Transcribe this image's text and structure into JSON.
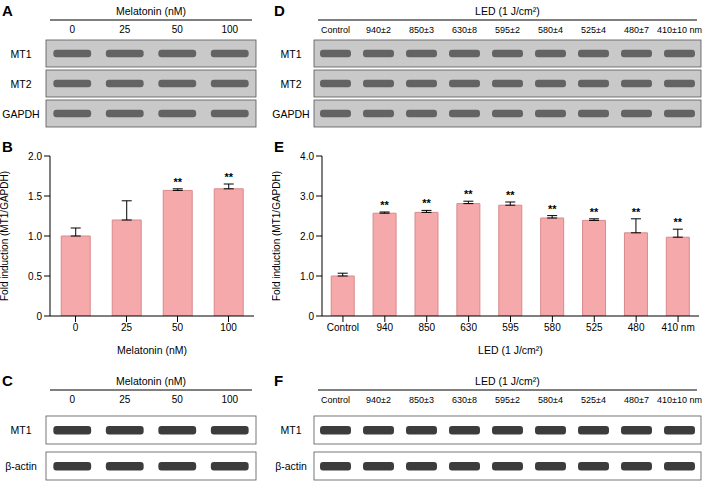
{
  "chart_data": [
    {
      "panel": "B",
      "type": "bar",
      "categories": [
        "0",
        "25",
        "50",
        "100"
      ],
      "values": [
        1.0,
        1.2,
        1.57,
        1.59
      ],
      "errors": [
        0.1,
        0.24,
        0.02,
        0.06
      ],
      "significance": [
        null,
        null,
        "**",
        "**"
      ],
      "color": "#f5a9ab",
      "x_label": "Melatonin (nM)",
      "y_label": "Fold induction (MT1/GAPDH)",
      "ylim": [
        0,
        2
      ],
      "yticks": [
        0,
        {
          "value": 0.5,
          "label": "0.5"
        },
        {
          "value": 1,
          "label": "1.0"
        },
        {
          "value": 1.5,
          "label": "1.5"
        },
        {
          "value": 2,
          "label": "2.0"
        }
      ]
    },
    {
      "panel": "E",
      "type": "bar",
      "categories": [
        "Control",
        "940",
        "850",
        "630",
        "595",
        "580",
        "525",
        "480",
        "410 nm"
      ],
      "values": [
        1.0,
        2.57,
        2.59,
        2.81,
        2.77,
        2.45,
        2.39,
        2.08,
        1.97
      ],
      "errors": [
        0.07,
        0.03,
        0.05,
        0.06,
        0.08,
        0.06,
        0.04,
        0.35,
        0.2
      ],
      "significance": [
        null,
        "**",
        "**",
        "**",
        "**",
        "**",
        "**",
        "**",
        "**"
      ],
      "color": "#f5a9ab",
      "x_label": "LED (1 J/cm²)",
      "y_label": "Fold induction (MT1/GAPDH)",
      "ylim": [
        0,
        4
      ],
      "yticks": [
        0,
        {
          "value": 1,
          "label": "1.0"
        },
        {
          "value": 2,
          "label": "2.0"
        },
        {
          "value": 3,
          "label": "3.0"
        },
        {
          "value": 4,
          "label": "4.0"
        }
      ]
    }
  ],
  "blots": [
    {
      "panel": "A",
      "style": "gel",
      "header": "Melatonin (nM)",
      "lanes": [
        "0",
        "25",
        "50",
        "100"
      ],
      "rows": [
        "MT1",
        "MT2",
        "GAPDH"
      ]
    },
    {
      "panel": "C",
      "style": "western",
      "header": "Melatonin (nM)",
      "lanes": [
        "0",
        "25",
        "50",
        "100"
      ],
      "rows": [
        "MT1",
        "β-actin"
      ]
    },
    {
      "panel": "D",
      "style": "gel",
      "header": "LED (1 J/cm²)",
      "lanes": [
        "Control",
        "940±2",
        "850±3",
        "630±8",
        "595±2",
        "580±4",
        "525±4",
        "480±7",
        "410±10 nm"
      ],
      "rows": [
        "MT1",
        "MT2",
        "GAPDH"
      ]
    },
    {
      "panel": "F",
      "style": "western",
      "header": "LED (1 J/cm²)",
      "lanes": [
        "Control",
        "940±2",
        "850±3",
        "630±8",
        "595±2",
        "580±4",
        "525±4",
        "480±7",
        "410±10 nm"
      ],
      "rows": [
        "MT1",
        "β-actin"
      ]
    }
  ]
}
